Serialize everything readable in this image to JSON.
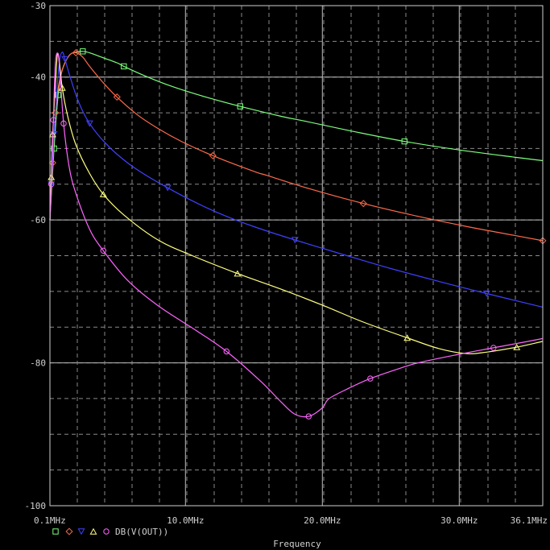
{
  "chart_data": {
    "type": "line",
    "title": "",
    "xlabel": "Frequency",
    "ylabel": "",
    "xlim": [
      0.1,
      36.1
    ],
    "ylim": [
      -100,
      -30
    ],
    "x_unit": "MHz",
    "x_tick_labels": [
      "0.1MHz",
      "10.0MHz",
      "20.0MHz",
      "30.0MHz",
      "36.1MHz"
    ],
    "x_tick_values": [
      0.1,
      10.0,
      20.0,
      30.0,
      36.1
    ],
    "y_tick_labels": [
      "-30",
      "-40",
      "-60",
      "-80",
      "-100"
    ],
    "y_tick_values": [
      -30,
      -40,
      -60,
      -80,
      -100
    ],
    "grid": true,
    "legend_text": "DB(V(OUT))",
    "legend_placement": "bottom-left",
    "series": [
      {
        "color": "#7dff7d",
        "marker": "square",
        "x": [
          0.1,
          0.4,
          0.7,
          1.0,
          1.5,
          2.0,
          2.5,
          3.0,
          4.0,
          5.0,
          5.5,
          7.0,
          9.0,
          11.5,
          14.0,
          17.0,
          18.8,
          22.0,
          26.0,
          30.0,
          34.0,
          36.1
        ],
        "y": [
          -60.0,
          -50.0,
          -42.5,
          -39.0,
          -37.0,
          -36.5,
          -36.4,
          -36.6,
          -37.3,
          -38.0,
          -38.5,
          -39.8,
          -41.3,
          -42.8,
          -44.1,
          -45.5,
          -46.2,
          -47.5,
          -49.0,
          -50.2,
          -51.2,
          -51.7
        ]
      },
      {
        "color": "#ff6a4a",
        "marker": "diamond",
        "x": [
          0.1,
          0.3,
          0.5,
          0.8,
          1.2,
          1.6,
          2.0,
          2.5,
          3.0,
          4.0,
          5.0,
          6.5,
          8.0,
          9.7,
          12.0,
          15.0,
          16.0,
          19.0,
          23.0,
          27.0,
          30.5,
          33.0,
          36.1
        ],
        "y": [
          -60.0,
          -52.0,
          -45.0,
          -40.5,
          -38.0,
          -36.8,
          -36.6,
          -37.2,
          -38.5,
          -40.8,
          -42.8,
          -45.3,
          -47.2,
          -49.0,
          -51.0,
          -53.2,
          -53.8,
          -55.6,
          -57.7,
          -59.5,
          -60.9,
          -61.8,
          -62.9
        ]
      },
      {
        "color": "#4040ff",
        "marker": "triangle-down",
        "x": [
          0.1,
          0.2,
          0.4,
          0.6,
          0.8,
          1.0,
          1.2,
          1.5,
          2.0,
          2.5,
          3.0,
          3.8,
          5.0,
          6.5,
          8.7,
          11.0,
          13.0,
          15.1,
          18.0,
          21.8,
          25.0,
          28.7,
          32.0,
          36.1
        ],
        "y": [
          -60.0,
          -55.0,
          -48.0,
          -42.0,
          -37.8,
          -36.5,
          -37.5,
          -39.5,
          -42.5,
          -44.8,
          -46.5,
          -48.5,
          -50.8,
          -53.0,
          -55.5,
          -57.8,
          -59.5,
          -61.0,
          -62.8,
          -65.0,
          -66.8,
          -68.7,
          -70.3,
          -72.2
        ]
      },
      {
        "color": "#ffff80",
        "marker": "triangle-up",
        "x": [
          0.1,
          0.2,
          0.3,
          0.5,
          0.65,
          0.8,
          1.0,
          1.4,
          2.0,
          3.0,
          4.0,
          5.5,
          8.0,
          10.5,
          13.8,
          17.0,
          20.1,
          23.0,
          26.2,
          28.5,
          30.5,
          32.0,
          34.2,
          36.1
        ],
        "y": [
          -60.0,
          -54.0,
          -48.0,
          -41.0,
          -36.8,
          -38.0,
          -41.5,
          -45.5,
          -49.5,
          -53.5,
          -56.4,
          -59.3,
          -62.8,
          -65.0,
          -67.5,
          -69.7,
          -72.0,
          -74.3,
          -76.5,
          -78.0,
          -78.7,
          -78.5,
          -77.8,
          -77.0
        ]
      },
      {
        "color": "#ff66ff",
        "marker": "circle",
        "x": [
          0.1,
          0.2,
          0.35,
          0.5,
          0.7,
          0.85,
          1.1,
          1.5,
          2.0,
          3.0,
          4.0,
          5.8,
          8.0,
          10.8,
          13.0,
          15.5,
          17.0,
          18.0,
          19.0,
          20.0,
          20.5,
          22.0,
          23.5,
          25.3,
          27.0,
          30.0,
          32.5,
          35.0,
          36.1
        ],
        "y": [
          -60.0,
          -55.0,
          -46.0,
          -38.0,
          -36.8,
          -40.0,
          -46.5,
          -52.5,
          -56.3,
          -61.3,
          -64.3,
          -68.5,
          -72.0,
          -75.5,
          -78.4,
          -82.6,
          -85.5,
          -87.2,
          -87.5,
          -86.3,
          -85.0,
          -83.5,
          -82.2,
          -81.0,
          -80.0,
          -78.8,
          -77.9,
          -77.0,
          -76.6
        ]
      }
    ]
  }
}
